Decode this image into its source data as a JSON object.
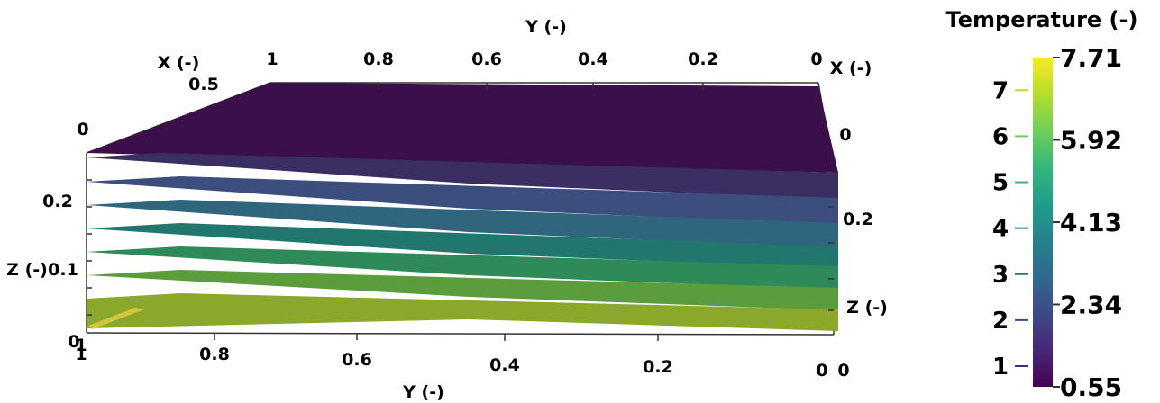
{
  "chart_data": {
    "type": "contour",
    "title": "",
    "axes": {
      "top_y_title": "Y (-)",
      "bottom_y_title": "Y (-)",
      "left_x_title": "X (-)",
      "right_x_title": "X (-)",
      "left_z_title": "Z (-)",
      "right_z_title": "Z (-)",
      "top_y_ticks": [
        "1",
        "0.8",
        "0.6",
        "0.4",
        "0.2",
        "0"
      ],
      "bottom_y_ticks": [
        "1",
        "0.8",
        "0.6",
        "0.4",
        "0.2",
        "0"
      ],
      "left_x_ticks": [
        "0",
        "0.5",
        "1"
      ],
      "left_z_ticks": [
        "0",
        "0.1",
        "0.2"
      ],
      "right_z_ticks": [
        "0",
        "0.2"
      ],
      "bottom_right_extra_tick": "0"
    },
    "colorbar": {
      "title": "Temperature (-)",
      "min_label": "0.55",
      "max_label": "7.71",
      "range": [
        0.55,
        7.71
      ],
      "left_ticks": [
        "1",
        "2",
        "3",
        "4",
        "5",
        "6",
        "7"
      ],
      "right_labels": [
        "7.71",
        "5.92",
        "4.13",
        "2.34",
        "0.55"
      ],
      "colormap": [
        "#440154",
        "#482878",
        "#3e4989",
        "#31688e",
        "#26828e",
        "#1f9e89",
        "#35b779",
        "#6ece58",
        "#b5de2b",
        "#fde725"
      ]
    },
    "layers": [
      {
        "color": "#3a0f4a"
      },
      {
        "color": "#3b2e63"
      },
      {
        "color": "#3c4e7d"
      },
      {
        "color": "#2f667d"
      },
      {
        "color": "#21776d"
      },
      {
        "color": "#2e8a58"
      },
      {
        "color": "#5b9d3c"
      },
      {
        "color": "#8aa82a"
      }
    ]
  }
}
